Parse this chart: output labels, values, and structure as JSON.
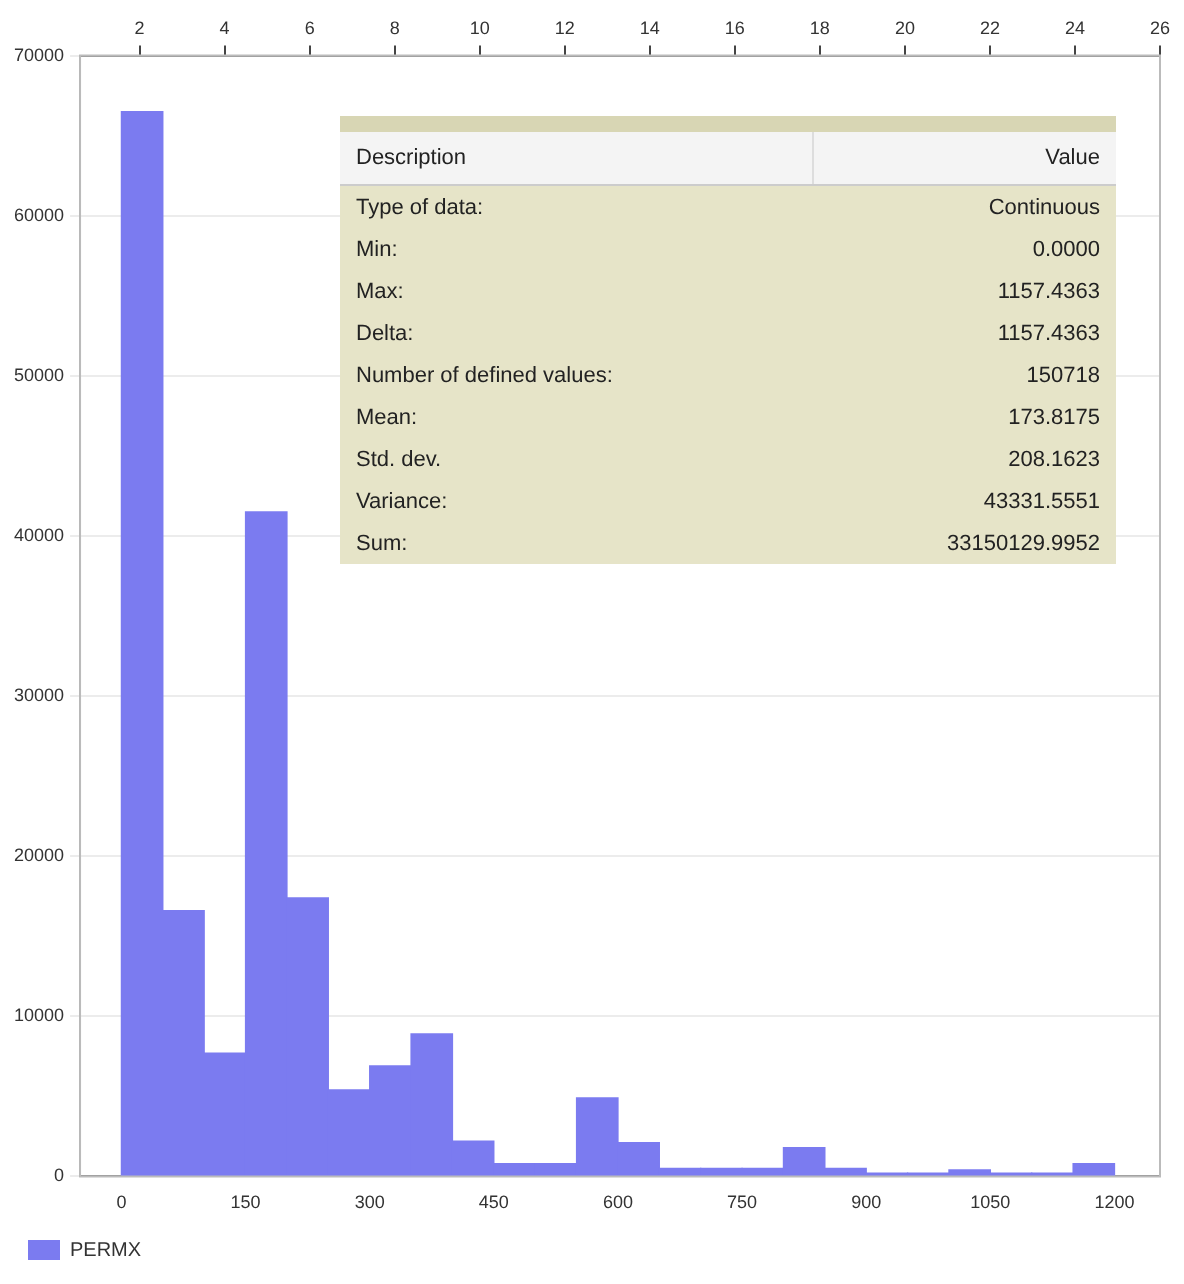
{
  "chart_data": [
    {
      "type": "histogram",
      "bins": [
        0,
        50,
        100,
        150,
        200,
        250,
        300,
        350,
        400,
        450,
        500,
        550,
        600,
        650,
        700,
        750,
        800,
        850,
        900,
        950,
        1000,
        1050,
        1100,
        1150,
        1200
      ],
      "series": [
        {
          "name": "PERMX",
          "color": "#7b7bf0",
          "values": [
            66500,
            16600,
            7700,
            41500,
            17400,
            5400,
            6900,
            8900,
            2200,
            800,
            800,
            4900,
            2100,
            500,
            500,
            500,
            1800,
            500,
            200,
            200,
            400,
            200,
            200,
            800
          ]
        }
      ],
      "xlim": [
        -50,
        1255
      ],
      "xticks": [
        0,
        150,
        300,
        450,
        600,
        750,
        900,
        1050,
        1200
      ],
      "x2lim": [
        0.6,
        26
      ],
      "x2ticks": [
        2,
        4,
        6,
        8,
        10,
        12,
        14,
        16,
        18,
        20,
        22,
        24,
        26
      ],
      "ylim": [
        0,
        70000
      ],
      "yticks": [
        0,
        10000,
        20000,
        30000,
        40000,
        50000,
        60000,
        70000
      ],
      "grid": "y",
      "legend": "bottom left"
    },
    {
      "type": "other",
      "annotations": [
        "Description",
        "Value",
        "Type of data:",
        "Continuous",
        "Min:",
        "0.0000",
        "Max:",
        "1157.4363",
        "Delta:",
        "1157.4363",
        "Number of defined values:",
        "150718",
        "Mean:",
        "173.8175",
        "Std. dev.",
        "208.1623",
        "Variance:",
        "43331.5551",
        "Sum:",
        "33150129.9952"
      ]
    }
  ]
}
